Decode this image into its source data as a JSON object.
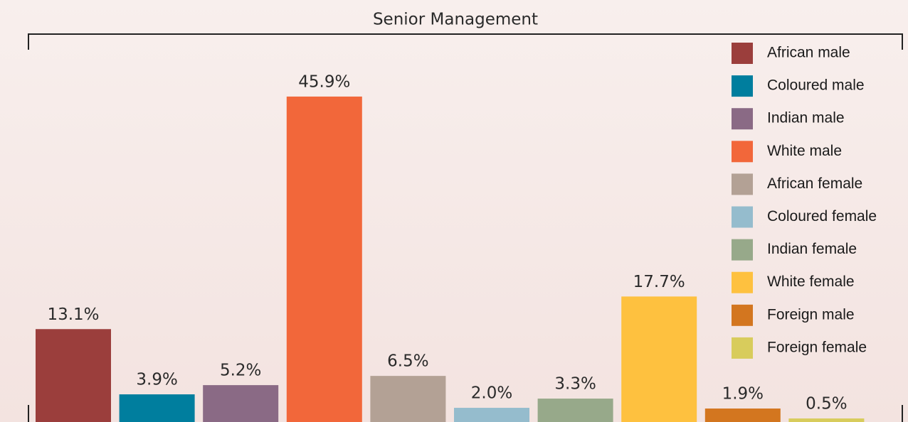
{
  "chart_data": {
    "type": "bar",
    "title": "Senior Management",
    "categories": [
      "African male",
      "Coloured male",
      "Indian male",
      "White male",
      "African female",
      "Coloured female",
      "Indian female",
      "White female",
      "Foreign male",
      "Foreign female"
    ],
    "values": [
      13.1,
      3.9,
      5.2,
      45.9,
      6.5,
      2.0,
      3.3,
      17.7,
      1.9,
      0.5
    ],
    "value_labels": [
      "13.1%",
      "3.9%",
      "5.2%",
      "45.9%",
      "6.5%",
      "2.0%",
      "3.3%",
      "17.7%",
      "1.9%",
      "0.5%"
    ],
    "colors": [
      "#9b3e3c",
      "#007e9e",
      "#8a6a85",
      "#f2673a",
      "#b3a195",
      "#95bccd",
      "#97a98a",
      "#fec13f",
      "#d3761f",
      "#d8cc5c"
    ],
    "legend": "top-right"
  }
}
